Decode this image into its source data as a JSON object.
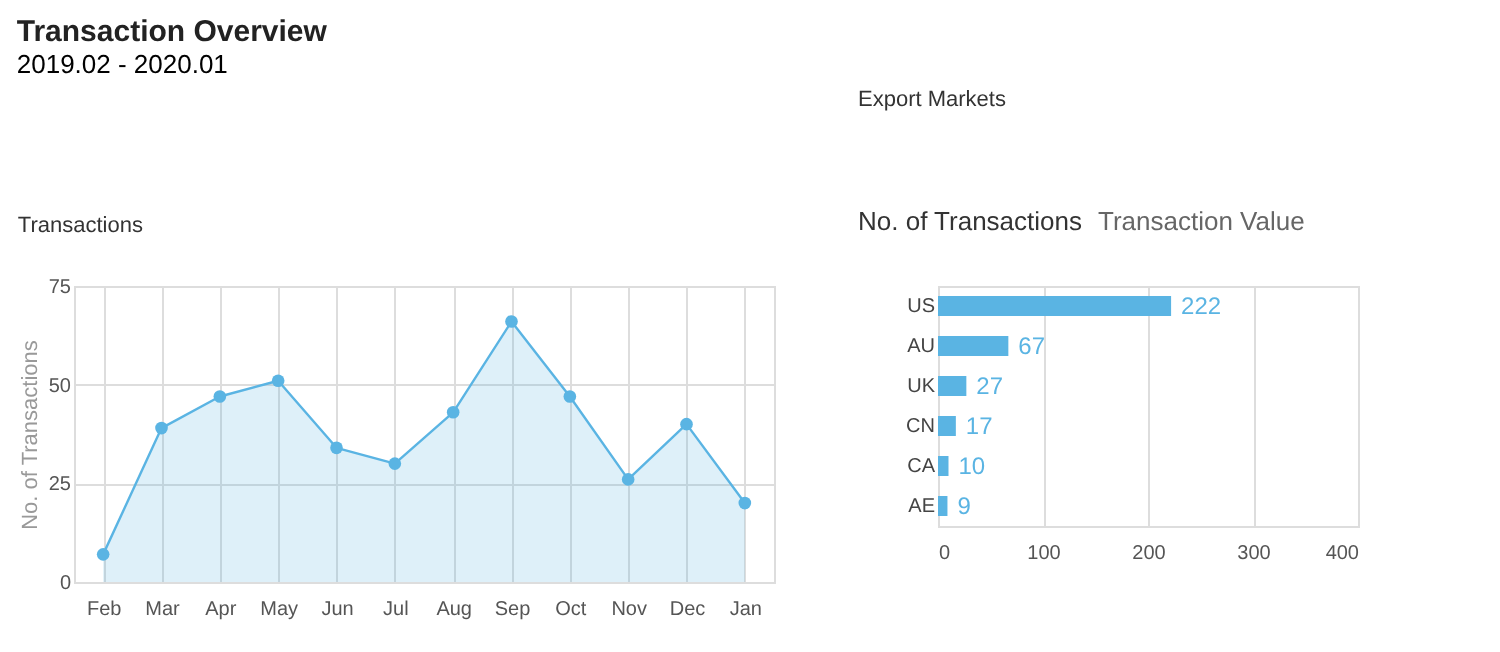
{
  "chart_data": [
    {
      "type": "area",
      "title": "Transactions",
      "ylabel": "No. of Transactions",
      "annotations": [
        "Transaction Overview",
        "2019.02 - 2020.01"
      ],
      "categories": [
        "Feb",
        "Mar",
        "Apr",
        "May",
        "Jun",
        "Jul",
        "Aug",
        "Sep",
        "Oct",
        "Nov",
        "Dec",
        "Jan"
      ],
      "series": [
        {
          "color": "#5ab4e3",
          "values": [
            7,
            39,
            47,
            51,
            34,
            30,
            43,
            66,
            47,
            26,
            40,
            20
          ]
        }
      ],
      "ylim": [
        0,
        75
      ],
      "yticks": [
        0,
        25,
        50,
        75
      ],
      "grid": true,
      "marker": "circle"
    },
    {
      "type": "bar",
      "orientation": "horizontal",
      "title": "Export Markets",
      "annotations": [
        "No. of Transactions",
        "Transaction Value"
      ],
      "categories": [
        "US",
        "AU",
        "UK",
        "CN",
        "CA",
        "AE"
      ],
      "values": [
        222,
        67,
        27,
        17,
        10,
        9
      ],
      "color": "#5ab4e3",
      "xlim": [
        0,
        400
      ],
      "xticks": [
        0,
        100,
        200,
        300,
        400
      ],
      "grid": "x",
      "data_labels": true
    }
  ]
}
